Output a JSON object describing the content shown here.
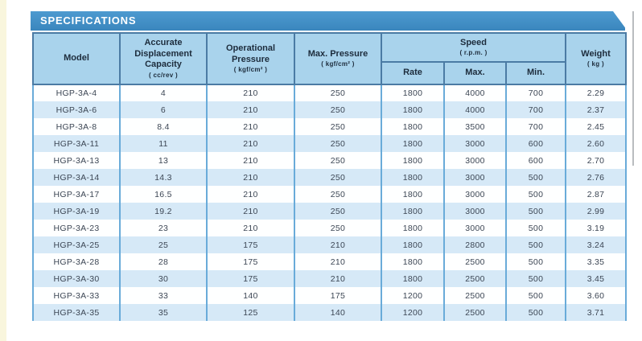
{
  "page": {
    "banner_title": "SPECIFICATIONS"
  },
  "colors": {
    "banner_blue": "#3E8CC4",
    "header_bg": "#A9D3EC",
    "row_stripe": "#D6E9F7",
    "header_border": "#4B7BA4",
    "body_border": "#69ABD9",
    "left_edge_strip": "#F9F6DD"
  },
  "table": {
    "headers": {
      "model": "Model",
      "capacity_title": "Accurate Displacement Capacity",
      "capacity_unit": "( cc/rev )",
      "op_pressure_title": "Operational Pressure",
      "op_pressure_unit": "( kgf/cm² )",
      "max_pressure_title": "Max. Pressure",
      "max_pressure_unit": "( kgf/cm² )",
      "speed_title": "Speed",
      "speed_unit": "( r.p.m. )",
      "speed_rate": "Rate",
      "speed_max": "Max.",
      "speed_min": "Min.",
      "weight_title": "Weight",
      "weight_unit": "( kg )"
    },
    "rows": [
      [
        "HGP-3A-4",
        "4",
        "210",
        "250",
        "1800",
        "4000",
        "700",
        "2.29"
      ],
      [
        "HGP-3A-6",
        "6",
        "210",
        "250",
        "1800",
        "4000",
        "700",
        "2.37"
      ],
      [
        "HGP-3A-8",
        "8.4",
        "210",
        "250",
        "1800",
        "3500",
        "700",
        "2.45"
      ],
      [
        "HGP-3A-11",
        "11",
        "210",
        "250",
        "1800",
        "3000",
        "600",
        "2.60"
      ],
      [
        "HGP-3A-13",
        "13",
        "210",
        "250",
        "1800",
        "3000",
        "600",
        "2.70"
      ],
      [
        "HGP-3A-14",
        "14.3",
        "210",
        "250",
        "1800",
        "3000",
        "500",
        "2.76"
      ],
      [
        "HGP-3A-17",
        "16.5",
        "210",
        "250",
        "1800",
        "3000",
        "500",
        "2.87"
      ],
      [
        "HGP-3A-19",
        "19.2",
        "210",
        "250",
        "1800",
        "3000",
        "500",
        "2.99"
      ],
      [
        "HGP-3A-23",
        "23",
        "210",
        "250",
        "1800",
        "3000",
        "500",
        "3.19"
      ],
      [
        "HGP-3A-25",
        "25",
        "175",
        "210",
        "1800",
        "2800",
        "500",
        "3.24"
      ],
      [
        "HGP-3A-28",
        "28",
        "175",
        "210",
        "1800",
        "2500",
        "500",
        "3.35"
      ],
      [
        "HGP-3A-30",
        "30",
        "175",
        "210",
        "1800",
        "2500",
        "500",
        "3.45"
      ],
      [
        "HGP-3A-33",
        "33",
        "140",
        "175",
        "1200",
        "2500",
        "500",
        "3.60"
      ],
      [
        "HGP-3A-35",
        "35",
        "125",
        "140",
        "1200",
        "2500",
        "500",
        "3.71"
      ]
    ]
  }
}
